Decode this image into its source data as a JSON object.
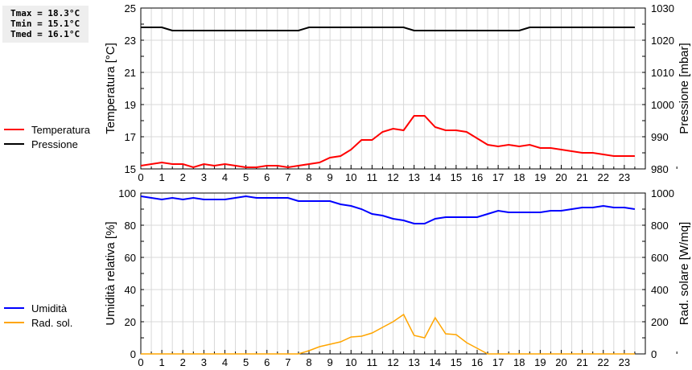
{
  "stats": [
    "Tmax = 18.3°C",
    "Tmin = 15.1°C",
    "Tmed = 16.1°C"
  ],
  "colors": {
    "temp": "#ff0000",
    "press": "#000000",
    "hum": "#0000ff",
    "rad": "#ffa500",
    "grid": "#d8d8d8"
  },
  "chart_data": [
    {
      "type": "line",
      "ylabel": "Temperatura [°C]",
      "y2label": "Pressione [mbar]",
      "ylim": [
        15,
        25
      ],
      "yticks": [
        15,
        17,
        19,
        21,
        23,
        25
      ],
      "y2lim": [
        980,
        1030
      ],
      "y2ticks": [
        980,
        990,
        1000,
        1010,
        1020,
        1030
      ],
      "xlim": [
        0,
        24
      ],
      "xticks": [
        0,
        1,
        2,
        3,
        4,
        5,
        6,
        7,
        8,
        9,
        10,
        11,
        12,
        13,
        14,
        15,
        16,
        17,
        18,
        19,
        20,
        21,
        22,
        23
      ],
      "x_step": 0.5,
      "legend": [
        "Temperatura",
        "Pressione"
      ],
      "legend_placement": "left",
      "series": [
        {
          "name": "Temperatura",
          "axis": "left",
          "values": [
            15.2,
            15.3,
            15.4,
            15.3,
            15.3,
            15.1,
            15.3,
            15.2,
            15.3,
            15.2,
            15.1,
            15.1,
            15.2,
            15.2,
            15.1,
            15.2,
            15.3,
            15.4,
            15.7,
            15.8,
            16.2,
            16.8,
            16.8,
            17.3,
            17.5,
            17.4,
            18.3,
            18.3,
            17.6,
            17.4,
            17.4,
            17.3,
            16.9,
            16.5,
            16.4,
            16.5,
            16.4,
            16.5,
            16.3,
            16.3,
            16.2,
            16.1,
            16.0,
            16.0,
            15.9,
            15.8,
            15.8,
            15.8
          ]
        },
        {
          "name": "Pressione",
          "axis": "right",
          "values": [
            1024,
            1024,
            1024,
            1023,
            1023,
            1023,
            1023,
            1023,
            1023,
            1023,
            1023,
            1023,
            1023,
            1023,
            1023,
            1023,
            1024,
            1024,
            1024,
            1024,
            1024,
            1024,
            1024,
            1024,
            1024,
            1024,
            1023,
            1023,
            1023,
            1023,
            1023,
            1023,
            1023,
            1023,
            1023,
            1023,
            1023,
            1024,
            1024,
            1024,
            1024,
            1024,
            1024,
            1024,
            1024,
            1024,
            1024,
            1024
          ]
        }
      ]
    },
    {
      "type": "line",
      "ylabel": "Umidità relativa [%]",
      "y2label": "Rad. solare [W/mq]",
      "ylim": [
        0,
        100
      ],
      "yticks": [
        0,
        20,
        40,
        60,
        80,
        100
      ],
      "y2lim": [
        0,
        1000
      ],
      "y2ticks": [
        0,
        200,
        400,
        600,
        800,
        1000
      ],
      "xlim": [
        0,
        24
      ],
      "xticks": [
        0,
        1,
        2,
        3,
        4,
        5,
        6,
        7,
        8,
        9,
        10,
        11,
        12,
        13,
        14,
        15,
        16,
        17,
        18,
        19,
        20,
        21,
        22,
        23
      ],
      "x_step": 0.5,
      "legend": [
        "Umidità",
        "Rad. sol."
      ],
      "legend_placement": "left",
      "series": [
        {
          "name": "Umidità",
          "axis": "left",
          "values": [
            98,
            97,
            96,
            97,
            96,
            97,
            96,
            96,
            96,
            97,
            98,
            97,
            97,
            97,
            97,
            95,
            95,
            95,
            95,
            93,
            92,
            90,
            87,
            86,
            84,
            83,
            81,
            81,
            84,
            85,
            85,
            85,
            85,
            87,
            89,
            88,
            88,
            88,
            88,
            89,
            89,
            90,
            91,
            91,
            92,
            91,
            91,
            90
          ]
        },
        {
          "name": "Rad. sol.",
          "axis": "right",
          "values": [
            0,
            0,
            0,
            0,
            0,
            0,
            0,
            0,
            0,
            0,
            0,
            0,
            0,
            0,
            0,
            0,
            20,
            45,
            60,
            75,
            105,
            110,
            130,
            165,
            200,
            245,
            115,
            100,
            225,
            125,
            120,
            70,
            35,
            0,
            0,
            0,
            0,
            0,
            0,
            0,
            0,
            0,
            0,
            0,
            0,
            0,
            0,
            0
          ]
        }
      ]
    }
  ]
}
